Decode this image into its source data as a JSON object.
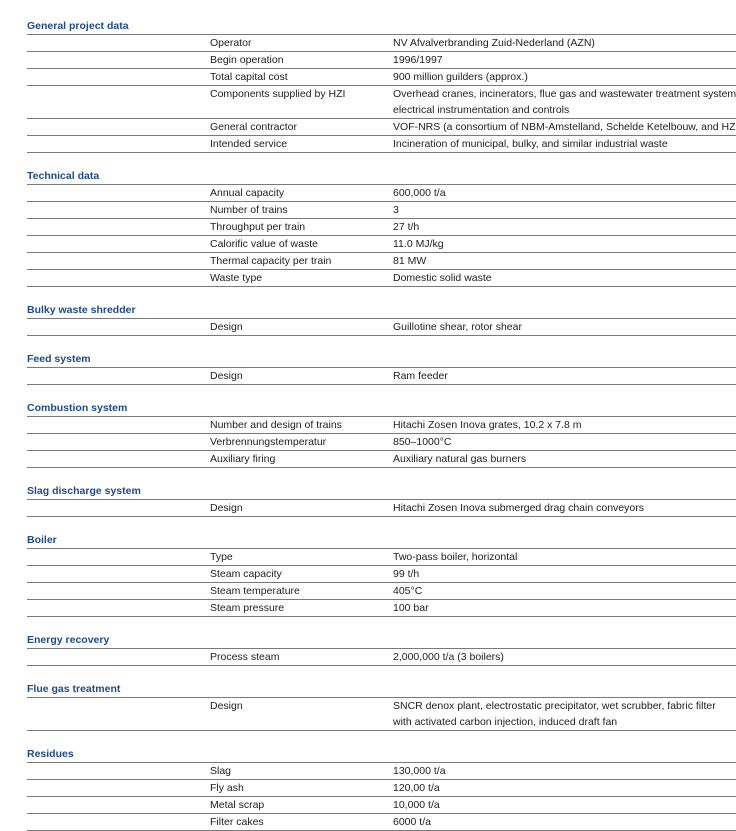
{
  "sections": [
    {
      "title": "General project data",
      "rows": [
        {
          "label": "Operator",
          "value": [
            "NV Afvalverbranding Zuid-Nederland (AZN)"
          ]
        },
        {
          "label": "Begin operation",
          "value": [
            "1996/1997"
          ]
        },
        {
          "label": "Total capital cost",
          "value": [
            "900 million guilders (approx.)"
          ]
        },
        {
          "label": "Components supplied by HZI",
          "value": [
            "Overhead cranes, incinerators, flue gas and wastewater treatment systems,",
            "electrical instrumentation and controls"
          ]
        },
        {
          "label": "General contractor",
          "value": [
            "VOF-NRS (a consortium of NBM-Amstelland, Schelde Ketelbouw, and HZI)"
          ]
        },
        {
          "label": "Intended service",
          "value": [
            "Incineration of municipal, bulky, and similar industrial waste"
          ]
        }
      ]
    },
    {
      "title": "Technical data",
      "rows": [
        {
          "label": "Annual capacity",
          "value": [
            "600,000 t/a"
          ]
        },
        {
          "label": "Number of trains",
          "value": [
            "3"
          ]
        },
        {
          "label": "Throughput per train",
          "value": [
            "27 t/h"
          ]
        },
        {
          "label": "Calorific value of waste",
          "value": [
            "11.0 MJ/kg"
          ]
        },
        {
          "label": "Thermal capacity per train",
          "value": [
            "81 MW"
          ]
        },
        {
          "label": "Waste type",
          "value": [
            "Domestic solid waste"
          ]
        }
      ]
    },
    {
      "title": "Bulky waste shredder",
      "rows": [
        {
          "label": "Design",
          "value": [
            "Guillotine shear, rotor shear"
          ]
        }
      ]
    },
    {
      "title": "Feed system",
      "rows": [
        {
          "label": "Design",
          "value": [
            "Ram feeder"
          ]
        }
      ]
    },
    {
      "title": "Combustion system",
      "rows": [
        {
          "label": "Number and design of trains",
          "value": [
            "Hitachi Zosen Inova grates, 10.2 x 7.8 m"
          ]
        },
        {
          "label": "Verbrennungstemperatur",
          "value": [
            "850–1000°C"
          ]
        },
        {
          "label": "Auxiliary firing",
          "value": [
            "Auxiliary natural gas burners"
          ]
        }
      ]
    },
    {
      "title": "Slag discharge system",
      "rows": [
        {
          "label": "Design",
          "value": [
            "Hitachi Zosen Inova submerged drag chain conveyors"
          ]
        }
      ]
    },
    {
      "title": "Boiler",
      "rows": [
        {
          "label": "Type",
          "value": [
            "Two-pass boiler, horizontal"
          ]
        },
        {
          "label": "Steam capacity",
          "value": [
            "99 t/h"
          ]
        },
        {
          "label": "Steam temperature",
          "value": [
            "405°C"
          ]
        },
        {
          "label": "Steam pressure",
          "value": [
            "100 bar"
          ]
        }
      ]
    },
    {
      "title": "Energy recovery",
      "rows": [
        {
          "label": "Process steam",
          "value": [
            "2,000,000 t/a (3 boilers)"
          ]
        }
      ]
    },
    {
      "title": "Flue gas treatment",
      "rows": [
        {
          "label": "Design",
          "value": [
            "SNCR denox plant, electrostatic precipitator, wet scrubber, fabric filter",
            "with activated carbon injection, induced draft fan"
          ]
        }
      ]
    },
    {
      "title": "Residues",
      "rows": [
        {
          "label": "Slag",
          "value": [
            "130,000 t/a"
          ]
        },
        {
          "label": "Fly ash",
          "value": [
            "120,00 t/a"
          ]
        },
        {
          "label": "Metal scrap",
          "value": [
            "10,000 t/a"
          ]
        },
        {
          "label": "Filter cakes",
          "value": [
            "6000 t/a"
          ]
        }
      ]
    }
  ]
}
